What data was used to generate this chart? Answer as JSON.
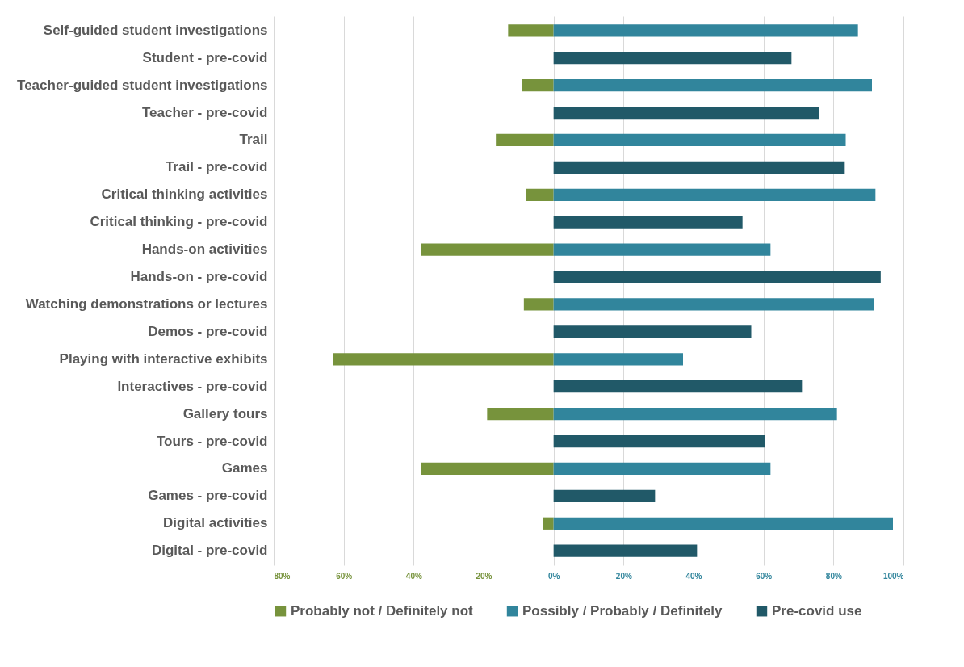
{
  "chart_data": {
    "type": "bar",
    "orientation": "horizontal",
    "stacked": true,
    "categories": [
      "Self-guided student investigations",
      "Student - pre-covid",
      "Teacher-guided student investigations",
      "Teacher - pre-covid",
      "Trail",
      "Trail - pre-covid",
      "Critical thinking activities",
      "Critical thinking - pre-covid",
      "Hands-on activities",
      "Hands-on - pre-covid",
      "Watching demonstrations or lectures",
      "Demos - pre-covid",
      "Playing with interactive exhibits",
      "Interactives - pre-covid",
      "Gallery tours",
      "Tours - pre-covid",
      "Games",
      "Games - pre-covid",
      "Digital activities",
      "Digital - pre-covid"
    ],
    "series": [
      {
        "name": "Probably not / Definitely not",
        "color": "#77933c",
        "values": [
          -13,
          null,
          -9,
          null,
          -16.5,
          null,
          -8,
          null,
          -38,
          null,
          -8.5,
          null,
          -63,
          null,
          -19,
          null,
          -38,
          null,
          -3,
          null
        ]
      },
      {
        "name": "Possibly / Probably / Definitely",
        "color": "#31859c",
        "values": [
          87,
          null,
          91,
          null,
          83.5,
          null,
          92,
          null,
          62,
          null,
          91.5,
          null,
          37,
          null,
          81,
          null,
          62,
          null,
          97,
          null
        ]
      },
      {
        "name": "Pre-covid use",
        "color": "#215968",
        "values": [
          null,
          68,
          null,
          76,
          null,
          83,
          null,
          54,
          null,
          93.5,
          null,
          56.5,
          null,
          71,
          null,
          60.5,
          null,
          29,
          null,
          41
        ]
      }
    ],
    "xlim": [
      -80,
      100
    ],
    "xticks": [
      {
        "value": -80,
        "label": "80%"
      },
      {
        "value": -60,
        "label": "60%"
      },
      {
        "value": -40,
        "label": "40%"
      },
      {
        "value": -20,
        "label": "20%"
      },
      {
        "value": 0,
        "label": "0%"
      },
      {
        "value": 20,
        "label": "20%"
      },
      {
        "value": 40,
        "label": "40%"
      },
      {
        "value": 60,
        "label": "60%"
      },
      {
        "value": 80,
        "label": "80%"
      },
      {
        "value": 100,
        "label": "100%"
      }
    ],
    "grid": "x",
    "legend": "bottom"
  }
}
